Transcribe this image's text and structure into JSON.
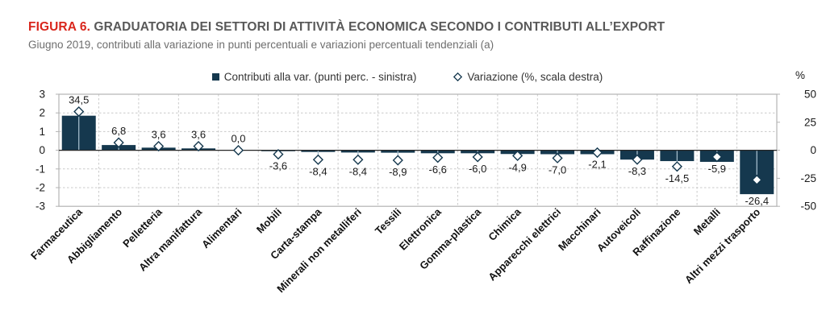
{
  "figure": {
    "label": "FIGURA 6.",
    "title": "GRADUATORIA DEI SETTORI DI ATTIVITÀ ECONOMICA SECONDO I CONTRIBUTI ALL’EXPORT",
    "subtitle": "Giugno 2019, contributi alla variazione in punti percentuali e variazioni percentuali tendenziali (a)"
  },
  "chart_data": {
    "type": "bar",
    "title": "Graduatoria dei settori di attività economica secondo i contributi all'export",
    "categories": [
      "Farmaceutica",
      "Abbigliamento",
      "Pelletteria",
      "Altra manifattura",
      "Alimentari",
      "Mobili",
      "Carta-stampa",
      "Minerali non metalliferi",
      "Tessili",
      "Elettronica",
      "Gomma-plastica",
      "Chimica",
      "Apparecchi elettrici",
      "Macchinari",
      "Autoveicoli",
      "Raffinazione",
      "Metalli",
      "Altri mezzi trasporto"
    ],
    "series": [
      {
        "name": "Contributi alla var. (punti perc. - sinistra)",
        "type": "bar",
        "axis": "left",
        "values": [
          1.85,
          0.28,
          0.14,
          0.1,
          0.0,
          -0.05,
          -0.09,
          -0.12,
          -0.13,
          -0.16,
          -0.16,
          -0.2,
          -0.21,
          -0.21,
          -0.5,
          -0.58,
          -0.62,
          -2.35
        ]
      },
      {
        "name": "Variazione (%, scala destra)",
        "type": "scatter",
        "marker": "diamond",
        "axis": "right",
        "values": [
          34.5,
          6.8,
          3.6,
          3.6,
          0.0,
          -3.6,
          -8.4,
          -8.4,
          -8.9,
          -6.6,
          -6.0,
          -4.9,
          -7.0,
          -2.1,
          -8.3,
          -14.5,
          -5.9,
          -26.4
        ]
      }
    ],
    "variation_labels": [
      "34,5",
      "6,8",
      "3,6",
      "3,6",
      "0,0",
      "-3,6",
      "-8,4",
      "-8,4",
      "-8,9",
      "-6,6",
      "-6,0",
      "-4,9",
      "-7,0",
      "-2,1",
      "-8,3",
      "-14,5",
      "-5,9",
      "-26,4"
    ],
    "left_axis": {
      "min": -3,
      "max": 3,
      "ticks": [
        3,
        2,
        1,
        0,
        -1,
        -2,
        -3
      ]
    },
    "right_axis": {
      "min": -50,
      "max": 50,
      "ticks": [
        50,
        25,
        0,
        -25,
        -50
      ],
      "unit": "%"
    },
    "grid": true,
    "legend_position": "top",
    "colors": {
      "bar": "#15384e",
      "marker_fill": "#ffffff",
      "marker_stroke": "#15384e",
      "drop_line": "#a3bccb",
      "grid": "#c9c9c9",
      "border": "#b3b3b3",
      "zero_line": "#262626",
      "tick_text": "#1a1a1a",
      "value_text": "#1a1a1a",
      "category_text": "#111111"
    }
  }
}
